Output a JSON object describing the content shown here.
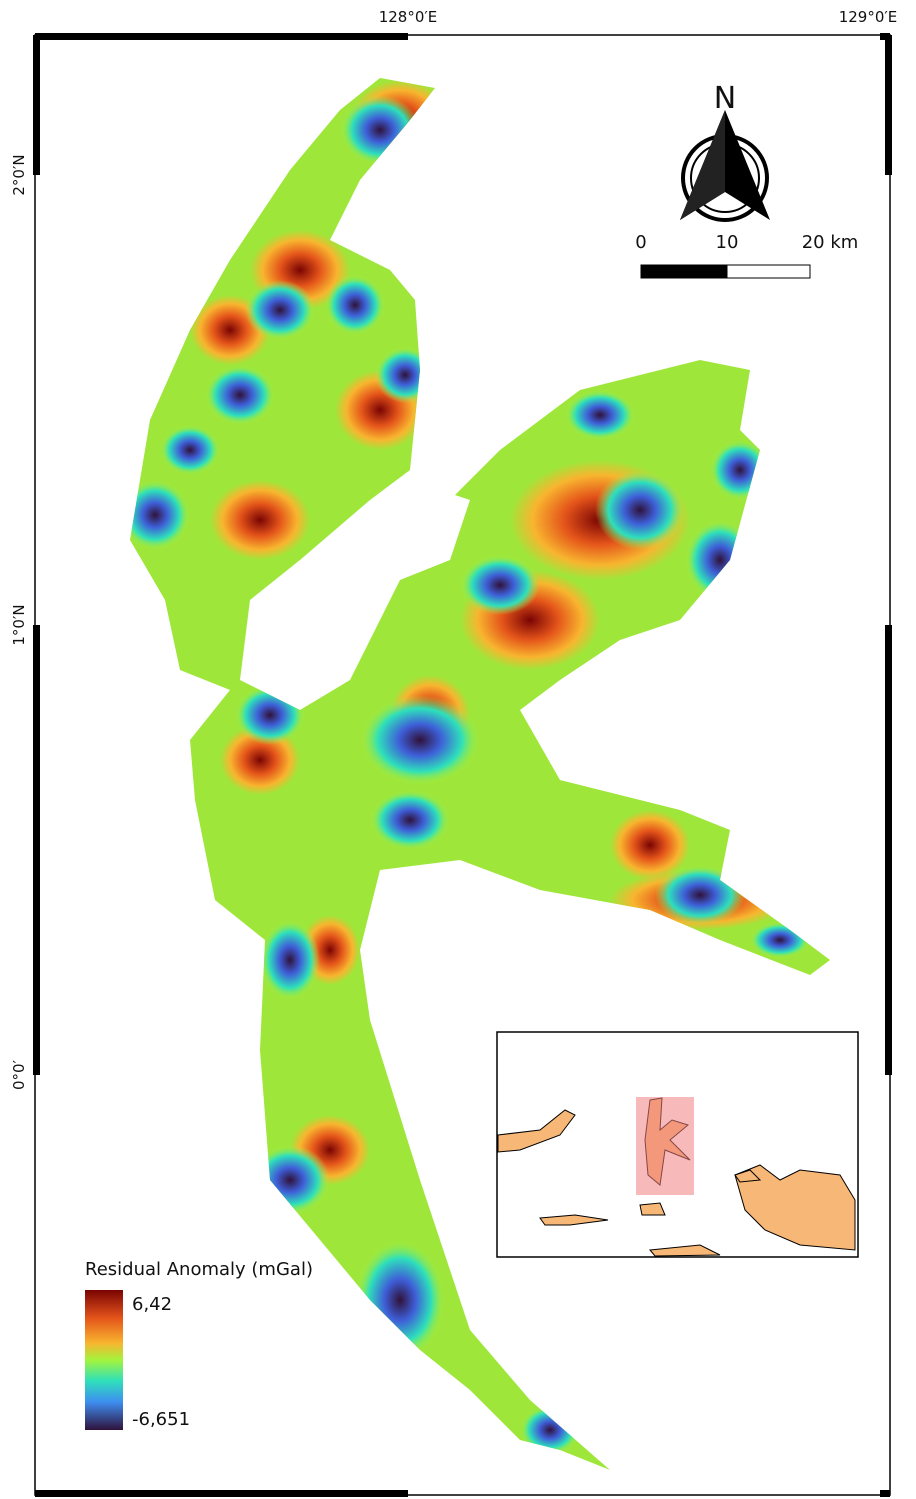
{
  "map": {
    "longitude_labels": [
      "128°0′E",
      "129°0′E"
    ],
    "latitude_labels": [
      "2°0′N",
      "1°0′N",
      "0°0′"
    ],
    "north_arrow": "N",
    "scale_bar": {
      "labels": [
        "0",
        "10",
        "20 km"
      ]
    },
    "legend": {
      "title": "Residual Anomaly (mGal)",
      "max": "6,42",
      "min": "-6,651"
    }
  }
}
